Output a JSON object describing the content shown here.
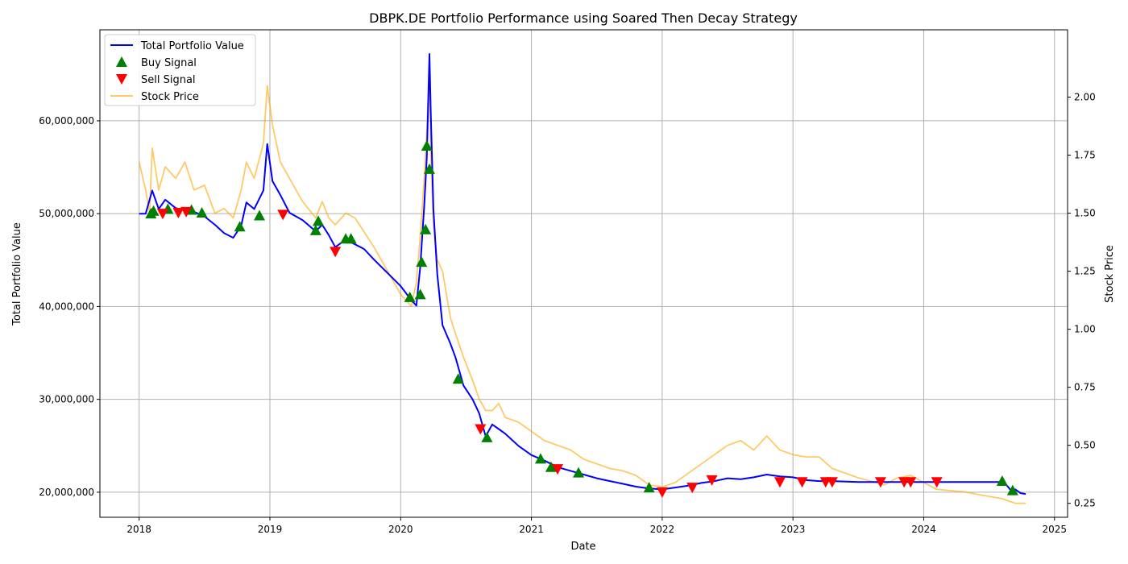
{
  "chart_data": {
    "type": "line",
    "title": "DBPK.DE Portfolio Performance using Soared Then Decay Strategy",
    "xlabel": "Date",
    "ylabel": "Total Portfolio Value",
    "y2label": "Stock Price",
    "xlim": [
      2017.7,
      2025.1
    ],
    "ylim": [
      17300000,
      69800000
    ],
    "y2lim": [
      0.19,
      2.29
    ],
    "x_ticks": [
      2018,
      2019,
      2020,
      2021,
      2022,
      2023,
      2024,
      2025
    ],
    "x_tick_labels": [
      "2018",
      "2019",
      "2020",
      "2021",
      "2022",
      "2023",
      "2024",
      "2025"
    ],
    "y_ticks": [
      20000000,
      30000000,
      40000000,
      50000000,
      60000000
    ],
    "y_tick_labels": [
      "20,000,000",
      "30,000,000",
      "40,000,000",
      "50,000,000",
      "60,000,000"
    ],
    "y2_ticks": [
      0.25,
      0.5,
      0.75,
      1.0,
      1.25,
      1.5,
      1.75,
      2.0
    ],
    "y2_tick_labels": [
      "0.25",
      "0.50",
      "0.75",
      "1.00",
      "1.25",
      "1.50",
      "1.75",
      "2.00"
    ],
    "grid": true,
    "legend_position": "top-left",
    "legend": [
      "Total Portfolio Value",
      "Buy Signal",
      "Sell Signal",
      "Stock Price"
    ],
    "colors": {
      "portfolio": "#0000ff",
      "buy": "#008000",
      "sell": "#ff0000",
      "price": "#ffa500",
      "grid": "#b0b0b0"
    },
    "series": [
      {
        "name": "Total Portfolio Value",
        "axis": "left",
        "x": [
          2018.0,
          2018.05,
          2018.1,
          2018.15,
          2018.2,
          2018.28,
          2018.35,
          2018.42,
          2018.5,
          2018.58,
          2018.65,
          2018.72,
          2018.78,
          2018.82,
          2018.88,
          2018.95,
          2018.98,
          2019.02,
          2019.08,
          2019.15,
          2019.25,
          2019.35,
          2019.4,
          2019.45,
          2019.5,
          2019.58,
          2019.65,
          2019.72,
          2019.8,
          2019.9,
          2020.0,
          2020.08,
          2020.12,
          2020.15,
          2020.18,
          2020.2,
          2020.22,
          2020.23,
          2020.25,
          2020.28,
          2020.32,
          2020.38,
          2020.42,
          2020.48,
          2020.55,
          2020.6,
          2020.65,
          2020.7,
          2020.75,
          2020.8,
          2020.9,
          2021.0,
          2021.1,
          2021.2,
          2021.3,
          2021.4,
          2021.5,
          2021.6,
          2021.7,
          2021.8,
          2021.9,
          2022.0,
          2022.1,
          2022.2,
          2022.3,
          2022.4,
          2022.5,
          2022.6,
          2022.7,
          2022.8,
          2022.9,
          2023.0,
          2023.1,
          2023.2,
          2023.3,
          2023.5,
          2023.7,
          2023.9,
          2024.1,
          2024.3,
          2024.5,
          2024.58,
          2024.62,
          2024.66,
          2024.7,
          2024.74,
          2024.78
        ],
        "values": [
          50000000,
          50000000,
          52500000,
          50500000,
          51500000,
          50600000,
          50400000,
          50200000,
          49700000,
          48800000,
          47900000,
          47400000,
          48700000,
          51200000,
          50500000,
          52500000,
          57500000,
          53500000,
          52000000,
          50100000,
          49300000,
          48100000,
          48800000,
          47700000,
          46400000,
          47200000,
          46700000,
          46200000,
          45000000,
          43600000,
          42200000,
          40700000,
          40100000,
          44300000,
          50800000,
          56000000,
          67200000,
          61000000,
          50500000,
          43500000,
          38000000,
          36000000,
          34500000,
          31500000,
          30000000,
          28500000,
          26000000,
          27300000,
          26800000,
          26300000,
          25000000,
          24000000,
          23400000,
          22700000,
          22300000,
          21900000,
          21500000,
          21200000,
          20900000,
          20600000,
          20400000,
          20300000,
          20500000,
          20700000,
          21000000,
          21200000,
          21500000,
          21400000,
          21600000,
          21900000,
          21700000,
          21600000,
          21300000,
          21200000,
          21200000,
          21100000,
          21100000,
          21100000,
          21100000,
          21100000,
          21100000,
          21100000,
          21000000,
          20300000,
          20300000,
          19900000,
          19800000
        ]
      },
      {
        "name": "Stock Price",
        "axis": "right",
        "x": [
          2018.0,
          2018.05,
          2018.08,
          2018.1,
          2018.15,
          2018.2,
          2018.28,
          2018.35,
          2018.42,
          2018.5,
          2018.58,
          2018.65,
          2018.72,
          2018.78,
          2018.82,
          2018.88,
          2018.95,
          2018.98,
          2019.02,
          2019.08,
          2019.15,
          2019.25,
          2019.35,
          2019.4,
          2019.45,
          2019.5,
          2019.58,
          2019.65,
          2019.72,
          2019.8,
          2019.9,
          2020.0,
          2020.08,
          2020.12,
          2020.15,
          2020.18,
          2020.2,
          2020.22,
          2020.23,
          2020.25,
          2020.28,
          2020.32,
          2020.38,
          2020.42,
          2020.48,
          2020.55,
          2020.6,
          2020.65,
          2020.7,
          2020.75,
          2020.8,
          2020.9,
          2021.0,
          2021.1,
          2021.2,
          2021.3,
          2021.4,
          2021.5,
          2021.6,
          2021.7,
          2021.8,
          2021.9,
          2022.0,
          2022.1,
          2022.2,
          2022.3,
          2022.4,
          2022.5,
          2022.6,
          2022.7,
          2022.8,
          2022.9,
          2023.0,
          2023.1,
          2023.2,
          2023.3,
          2023.5,
          2023.7,
          2023.8,
          2023.9,
          2024.0,
          2024.1,
          2024.3,
          2024.5,
          2024.6,
          2024.7,
          2024.78
        ],
        "values": [
          1.72,
          1.6,
          1.5,
          1.78,
          1.6,
          1.7,
          1.65,
          1.72,
          1.6,
          1.62,
          1.5,
          1.52,
          1.48,
          1.6,
          1.72,
          1.65,
          1.8,
          2.05,
          1.88,
          1.72,
          1.65,
          1.55,
          1.48,
          1.55,
          1.48,
          1.45,
          1.5,
          1.48,
          1.42,
          1.35,
          1.25,
          1.15,
          1.1,
          1.2,
          1.4,
          1.65,
          1.85,
          2.14,
          1.75,
          1.45,
          1.3,
          1.25,
          1.05,
          0.98,
          0.88,
          0.78,
          0.7,
          0.65,
          0.65,
          0.68,
          0.62,
          0.6,
          0.56,
          0.52,
          0.5,
          0.48,
          0.44,
          0.42,
          0.4,
          0.39,
          0.37,
          0.33,
          0.32,
          0.34,
          0.38,
          0.42,
          0.46,
          0.5,
          0.52,
          0.48,
          0.54,
          0.48,
          0.46,
          0.45,
          0.45,
          0.4,
          0.36,
          0.33,
          0.36,
          0.37,
          0.34,
          0.31,
          0.3,
          0.28,
          0.27,
          0.25,
          0.25
        ]
      }
    ],
    "buy_signals": {
      "name": "Buy Signal",
      "x": [
        2018.09,
        2018.11,
        2018.22,
        2018.4,
        2018.48,
        2018.77,
        2018.92,
        2019.35,
        2019.37,
        2019.58,
        2019.62,
        2020.07,
        2020.15,
        2020.16,
        2020.19,
        2020.2,
        2020.22,
        2020.44,
        2020.66,
        2021.07,
        2021.15,
        2021.36,
        2021.9,
        2024.6,
        2024.68
      ],
      "values": [
        50000000,
        50300000,
        50500000,
        50400000,
        50100000,
        48600000,
        49800000,
        48200000,
        49200000,
        47300000,
        47300000,
        41000000,
        41300000,
        44800000,
        48300000,
        57300000,
        54800000,
        32200000,
        25900000,
        23600000,
        22700000,
        22100000,
        20500000,
        21200000,
        20200000
      ]
    },
    "sell_signals": {
      "name": "Sell Signal",
      "x": [
        2018.18,
        2018.3,
        2018.36,
        2019.1,
        2019.5,
        2020.61,
        2021.2,
        2022.0,
        2022.23,
        2022.38,
        2022.9,
        2023.07,
        2023.25,
        2023.3,
        2023.67,
        2023.85,
        2023.9,
        2024.1
      ],
      "values": [
        50000000,
        50100000,
        50200000,
        49900000,
        45900000,
        26800000,
        22500000,
        20000000,
        20500000,
        21300000,
        21100000,
        21100000,
        21100000,
        21100000,
        21100000,
        21100000,
        21100000,
        21100000
      ]
    }
  }
}
